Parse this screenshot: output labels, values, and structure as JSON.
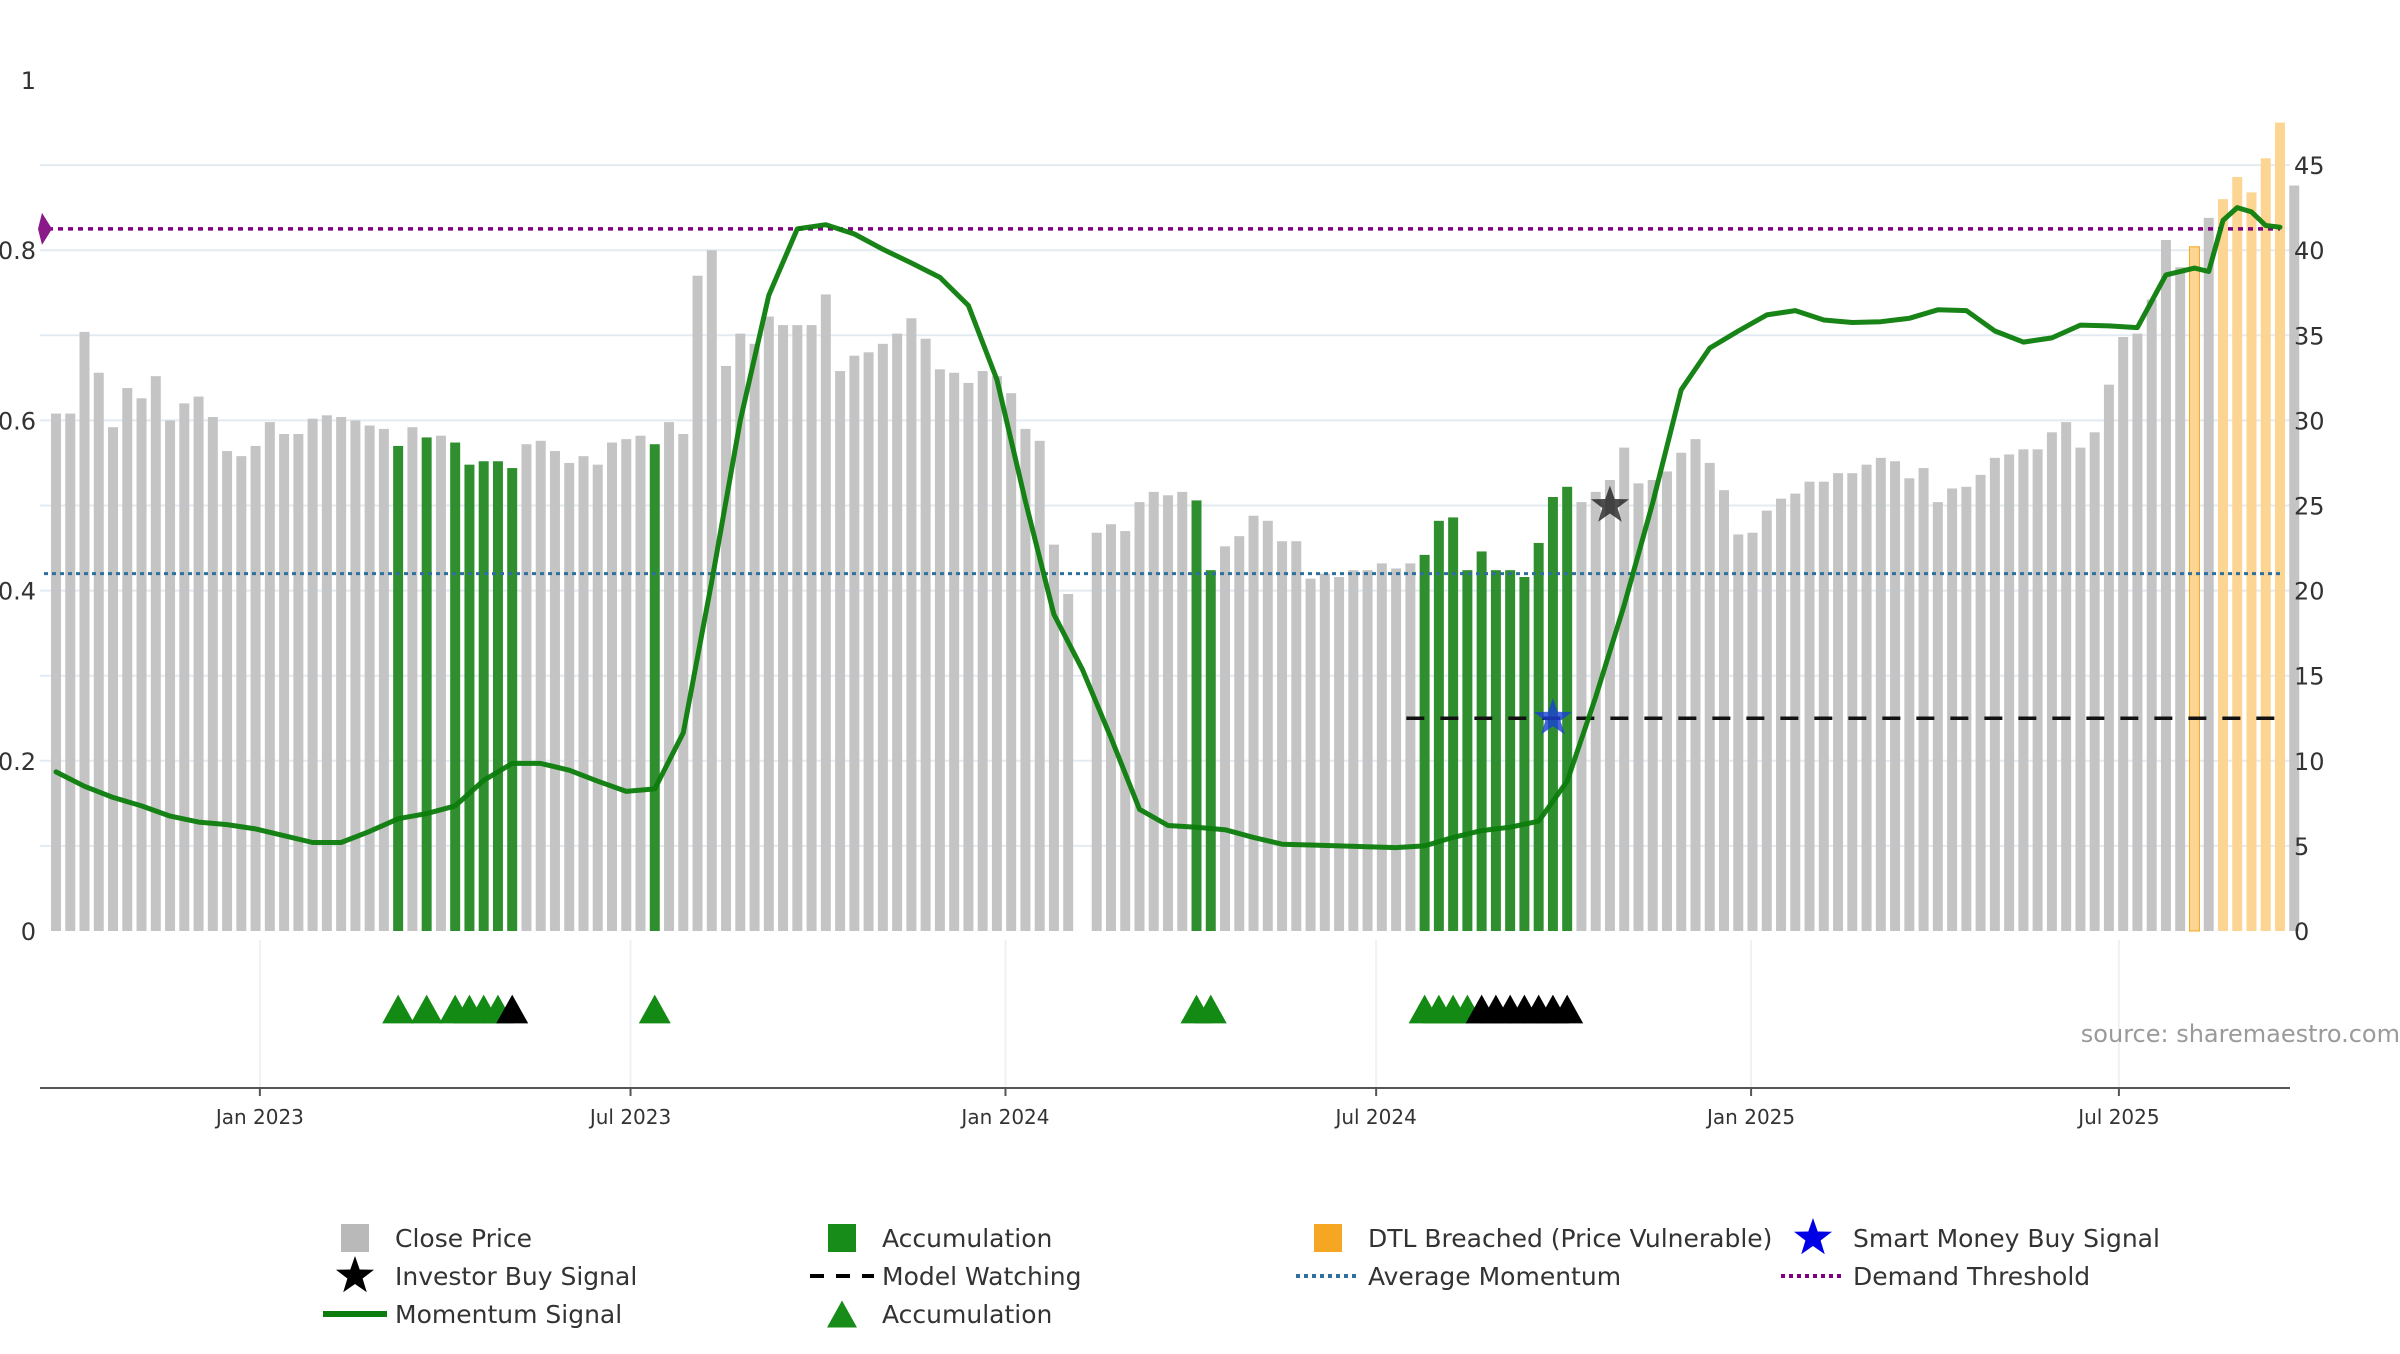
{
  "chart_data": {
    "type": "bar",
    "title": "",
    "source": "source: sharemaestro.com",
    "left_axis": {
      "ylim": [
        0,
        1
      ],
      "ticks": [
        "0",
        "0.2",
        "0.4",
        "0.6",
        "0.8",
        "1"
      ],
      "tick_values": [
        0,
        0.2,
        0.4,
        0.6,
        0.8,
        1
      ]
    },
    "right_axis": {
      "ylim": [
        0,
        50
      ],
      "ticks": [
        "0",
        "5",
        "10",
        "15",
        "20",
        "25",
        "30",
        "35",
        "40",
        "45"
      ],
      "tick_values": [
        0,
        5,
        10,
        15,
        20,
        25,
        30,
        35,
        40,
        45
      ]
    },
    "x_axis": {
      "start_date": "2022-09-30",
      "week_count": 157,
      "ticks": [
        {
          "label": "Jan 2023",
          "week": 14.3
        },
        {
          "label": "Jul 2023",
          "week": 40.3
        },
        {
          "label": "Jan 2024",
          "week": 66.6
        },
        {
          "label": "Jul 2024",
          "week": 92.6
        },
        {
          "label": "Jan 2025",
          "week": 118.9
        },
        {
          "label": "Jul 2025",
          "week": 144.7
        }
      ]
    },
    "price_series": {
      "name": "Close Price",
      "unit": "right axis",
      "values": [
        30.4,
        30.4,
        35.2,
        32.8,
        29.6,
        31.9,
        31.3,
        32.6,
        30.0,
        31.0,
        31.4,
        30.2,
        28.2,
        27.9,
        28.5,
        29.9,
        29.2,
        29.2,
        30.1,
        30.3,
        30.2,
        30.0,
        29.7,
        29.5,
        28.5,
        29.6,
        29.0,
        29.1,
        28.7,
        27.4,
        27.6,
        27.6,
        27.2,
        28.6,
        28.8,
        28.2,
        27.5,
        27.9,
        27.4,
        28.7,
        28.9,
        29.1,
        28.6,
        29.9,
        29.2,
        38.5,
        40.0,
        33.2,
        35.1,
        34.5,
        36.1,
        35.6,
        35.6,
        35.6,
        37.4,
        32.9,
        33.8,
        34.0,
        34.5,
        35.1,
        36.0,
        34.8,
        33.0,
        32.8,
        32.2,
        32.9,
        32.6,
        31.6,
        29.5,
        28.8,
        22.7,
        19.8,
        0,
        23.4,
        23.9,
        23.5,
        25.2,
        25.8,
        25.6,
        25.8,
        25.3,
        21.2,
        22.6,
        23.2,
        24.4,
        24.1,
        22.9,
        22.9,
        20.7,
        21.0,
        20.8,
        21.2,
        21.2,
        21.6,
        21.3,
        21.6,
        22.1,
        24.1,
        24.3,
        21.2,
        22.3,
        21.2,
        21.2,
        20.8,
        22.8,
        25.5,
        26.1,
        25.2,
        25.8,
        26.5,
        28.4,
        26.3,
        26.5,
        27.0,
        28.1,
        28.9,
        27.5,
        25.9,
        23.3,
        23.4,
        24.7,
        25.4,
        25.7,
        26.4,
        26.4,
        26.9,
        26.9,
        27.4,
        27.8,
        27.6,
        26.6,
        27.2,
        25.2,
        26.0,
        26.1,
        26.8,
        27.8,
        28.0,
        28.3,
        28.3,
        29.3,
        29.9,
        28.4,
        29.3,
        32.1,
        34.9,
        35.1,
        37.1,
        40.6,
        39.0,
        40.2,
        41.9,
        43.0,
        44.3,
        43.4,
        45.4,
        47.5,
        43.8
      ],
      "color": "#c4c4c4"
    },
    "accumulation_weeks": [
      24,
      26,
      28,
      29,
      30,
      31,
      32,
      42,
      80,
      81,
      96,
      97,
      98,
      99,
      100,
      101,
      102,
      103,
      104,
      105,
      106
    ],
    "accumulation_color": "#2f8f2f",
    "dtl_breached_weeks": [
      150,
      152,
      153,
      154,
      155,
      156
    ],
    "dtl_color": "#fcd592",
    "dtl_edge_color": "#f5a623",
    "momentum_series": {
      "name": "Momentum Signal",
      "unit": "left axis",
      "points": [
        [
          0,
          0.187
        ],
        [
          2,
          0.17
        ],
        [
          4,
          0.157
        ],
        [
          6,
          0.147
        ],
        [
          8,
          0.135
        ],
        [
          10,
          0.128
        ],
        [
          12,
          0.125
        ],
        [
          14,
          0.12
        ],
        [
          16,
          0.112
        ],
        [
          18,
          0.104
        ],
        [
          20,
          0.104
        ],
        [
          22,
          0.117
        ],
        [
          24,
          0.132
        ],
        [
          26,
          0.138
        ],
        [
          28,
          0.147
        ],
        [
          30,
          0.177
        ],
        [
          32,
          0.197
        ],
        [
          34,
          0.197
        ],
        [
          36,
          0.189
        ],
        [
          38,
          0.176
        ],
        [
          40,
          0.164
        ],
        [
          42,
          0.167
        ],
        [
          44,
          0.233
        ],
        [
          46,
          0.411
        ],
        [
          48,
          0.6
        ],
        [
          50,
          0.747
        ],
        [
          52,
          0.825
        ],
        [
          54,
          0.83
        ],
        [
          56,
          0.819
        ],
        [
          58,
          0.801
        ],
        [
          60,
          0.785
        ],
        [
          62,
          0.768
        ],
        [
          64,
          0.735
        ],
        [
          66,
          0.648
        ],
        [
          68,
          0.505
        ],
        [
          70,
          0.372
        ],
        [
          72,
          0.307
        ],
        [
          74,
          0.227
        ],
        [
          76,
          0.143
        ],
        [
          78,
          0.124
        ],
        [
          80,
          0.122
        ],
        [
          82,
          0.119
        ],
        [
          84,
          0.11
        ],
        [
          86,
          0.102
        ],
        [
          88,
          0.101
        ],
        [
          90,
          0.1
        ],
        [
          92,
          0.099
        ],
        [
          94,
          0.098
        ],
        [
          96,
          0.1
        ],
        [
          98,
          0.11
        ],
        [
          100,
          0.118
        ],
        [
          102,
          0.122
        ],
        [
          104,
          0.129
        ],
        [
          106,
          0.176
        ],
        [
          108,
          0.275
        ],
        [
          110,
          0.383
        ],
        [
          112,
          0.503
        ],
        [
          114,
          0.636
        ],
        [
          116,
          0.685
        ],
        [
          118,
          0.705
        ],
        [
          120,
          0.724
        ],
        [
          122,
          0.729
        ],
        [
          124,
          0.718
        ],
        [
          126,
          0.715
        ],
        [
          128,
          0.716
        ],
        [
          130,
          0.72
        ],
        [
          132,
          0.73
        ],
        [
          134,
          0.729
        ],
        [
          136,
          0.705
        ],
        [
          138,
          0.692
        ],
        [
          140,
          0.697
        ],
        [
          142,
          0.712
        ],
        [
          144,
          0.711
        ],
        [
          146,
          0.709
        ],
        [
          148,
          0.771
        ],
        [
          150,
          0.779
        ],
        [
          151,
          0.775
        ],
        [
          152,
          0.835
        ],
        [
          153,
          0.85
        ],
        [
          154,
          0.845
        ],
        [
          155,
          0.829
        ],
        [
          156,
          0.827
        ]
      ],
      "color": "#0c7d0c"
    },
    "average_momentum": 0.42,
    "demand_threshold": 0.825,
    "model_watching": {
      "from_week": 95,
      "to_week": 156,
      "value_right": 12.5
    },
    "smart_money_buy": {
      "week": 105,
      "value_right": 12.5
    },
    "investor_buy": {
      "week": 109,
      "value_right": 25.0
    },
    "signal_markers": {
      "green_weeks": [
        24,
        26,
        28,
        29,
        30,
        31,
        42,
        80,
        81,
        96,
        97,
        98,
        99
      ],
      "black_weeks": [
        32,
        100,
        101,
        102,
        103,
        104,
        105,
        106
      ]
    },
    "legend": [
      {
        "label": "Close Price",
        "symbol": "square",
        "color": "#b9b9b9"
      },
      {
        "label": "Accumulation",
        "symbol": "square",
        "color": "#188c18"
      },
      {
        "label": "DTL Breached (Price Vulnerable)",
        "symbol": "square",
        "color": "#f5a623"
      },
      {
        "label": "Smart Money Buy Signal",
        "symbol": "star",
        "color": "#0000e6"
      },
      {
        "label": "Investor Buy Signal",
        "symbol": "star",
        "color": "#000000"
      },
      {
        "label": "Model Watching",
        "symbol": "dash",
        "color": "#000000"
      },
      {
        "label": "Average Momentum",
        "symbol": "dot",
        "color": "#2e6f9e"
      },
      {
        "label": "Demand Threshold",
        "symbol": "dot",
        "color": "#800080"
      },
      {
        "label": "Momentum Signal",
        "symbol": "line",
        "color": "#0c7d0c"
      },
      {
        "label": "Accumulation",
        "symbol": "triangle",
        "color": "#188c18"
      }
    ]
  }
}
